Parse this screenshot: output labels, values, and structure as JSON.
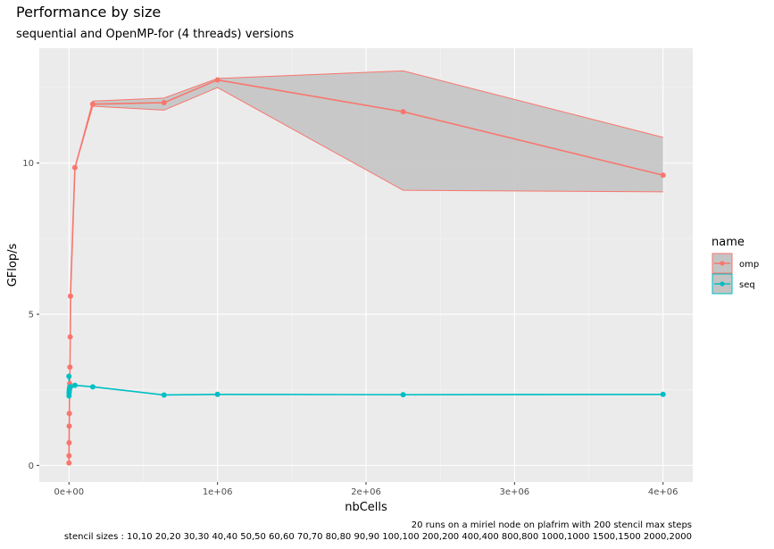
{
  "colors": {
    "panel_bg": "#ebebeb",
    "grid_major": "#ffffff",
    "grid_minor": "#f5f5f5",
    "omp": "#f8766d",
    "seq": "#00bfc4",
    "ribbon": "#c4c4c4"
  },
  "chart_data": {
    "type": "line",
    "title": "Performance by size",
    "subtitle": "sequential and OpenMP-for (4 threads) versions",
    "xlabel": "nbCells",
    "ylabel": "GFlop/s",
    "xlim": [
      -200000,
      4200000
    ],
    "ylim": [
      -0.55,
      13.8
    ],
    "x_ticks": [
      0,
      1000000,
      2000000,
      3000000,
      4000000
    ],
    "x_tick_labels": [
      "0e+00",
      "1e+06",
      "2e+06",
      "3e+06",
      "4e+06"
    ],
    "y_ticks": [
      0,
      5,
      10
    ],
    "y_tick_labels": [
      "0",
      "5",
      "10"
    ],
    "grid": true,
    "legend": {
      "title": "name",
      "position": "right",
      "entries": [
        "omp",
        "seq"
      ]
    },
    "caption_lines": [
      "20 runs on a miriel node on plafrim with 200 stencil max steps",
      "stencil sizes : 10,10 20,20 30,30 40,40 50,50 60,60 70,70 80,80 90,90 100,100 200,200 400,400 800,800 1000,1000 1500,1500 2000,2000"
    ],
    "series": [
      {
        "name": "omp",
        "x": [
          100,
          400,
          900,
          1600,
          2500,
          3600,
          4900,
          6400,
          8100,
          10000,
          40000,
          160000,
          640000,
          1000000,
          2250000,
          4000000
        ],
        "y": [
          0.08,
          0.32,
          0.75,
          1.3,
          1.72,
          2.55,
          2.7,
          3.25,
          4.25,
          5.6,
          9.85,
          11.95,
          12.0,
          12.75,
          11.7,
          9.6
        ],
        "ymin": [
          0.08,
          0.32,
          0.75,
          1.3,
          1.72,
          2.55,
          2.7,
          3.25,
          4.25,
          5.6,
          9.85,
          11.88,
          11.75,
          12.5,
          9.1,
          9.05
        ],
        "ymax": [
          0.08,
          0.32,
          0.75,
          1.3,
          1.72,
          2.55,
          2.7,
          3.25,
          4.25,
          5.6,
          9.85,
          12.05,
          12.15,
          12.8,
          13.05,
          10.85
        ]
      },
      {
        "name": "seq",
        "x": [
          100,
          400,
          900,
          1600,
          2500,
          3600,
          4900,
          6400,
          8100,
          10000,
          40000,
          160000,
          640000,
          1000000,
          2250000,
          4000000
        ],
        "y": [
          2.95,
          2.3,
          2.4,
          2.45,
          2.5,
          2.55,
          2.55,
          2.6,
          2.6,
          2.6,
          2.65,
          2.6,
          2.33,
          2.35,
          2.34,
          2.35
        ],
        "ymin": [
          2.95,
          2.3,
          2.4,
          2.45,
          2.5,
          2.55,
          2.55,
          2.6,
          2.6,
          2.6,
          2.65,
          2.6,
          2.33,
          2.35,
          2.34,
          2.35
        ],
        "ymax": [
          2.95,
          2.3,
          2.4,
          2.45,
          2.5,
          2.55,
          2.55,
          2.6,
          2.6,
          2.6,
          2.65,
          2.6,
          2.33,
          2.35,
          2.34,
          2.35
        ]
      }
    ]
  }
}
